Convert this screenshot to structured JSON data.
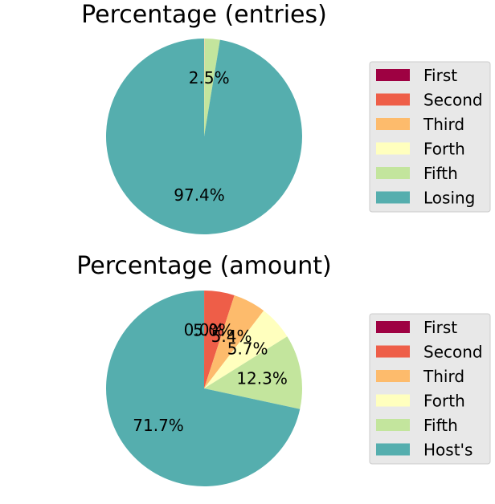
{
  "chart_data": [
    {
      "type": "pie",
      "title": "Percentage (entries)",
      "labels": [
        "First",
        "Second",
        "Third",
        "Forth",
        "Fifth",
        "Losing"
      ],
      "values": [
        0.01,
        0.02,
        0.03,
        0.04,
        2.5,
        97.4
      ],
      "value_labels": [
        "",
        "",
        "",
        "",
        "2.5%",
        "97.4%"
      ],
      "colors": [
        "#9e0142",
        "#ee5e48",
        "#fdbb6c",
        "#ffffbe",
        "#c3e59d",
        "#55aeae"
      ],
      "start_angle_deg": 90,
      "direction": "clockwise",
      "legend_position": "right"
    },
    {
      "type": "pie",
      "title": "Percentage (amount)",
      "labels": [
        "First",
        "Second",
        "Third",
        "Forth",
        "Fifth",
        "Host's"
      ],
      "values": [
        0.01,
        5.0,
        5.4,
        5.7,
        12.3,
        71.7
      ],
      "value_labels": [
        "0.0%",
        "5.0%",
        "5.4%",
        "5.7%",
        "12.3%",
        "71.7%"
      ],
      "colors": [
        "#9e0142",
        "#ee5e48",
        "#fdbb6c",
        "#ffffbe",
        "#c3e59d",
        "#55aeae"
      ],
      "start_angle_deg": 90,
      "direction": "clockwise",
      "legend_position": "right"
    }
  ]
}
